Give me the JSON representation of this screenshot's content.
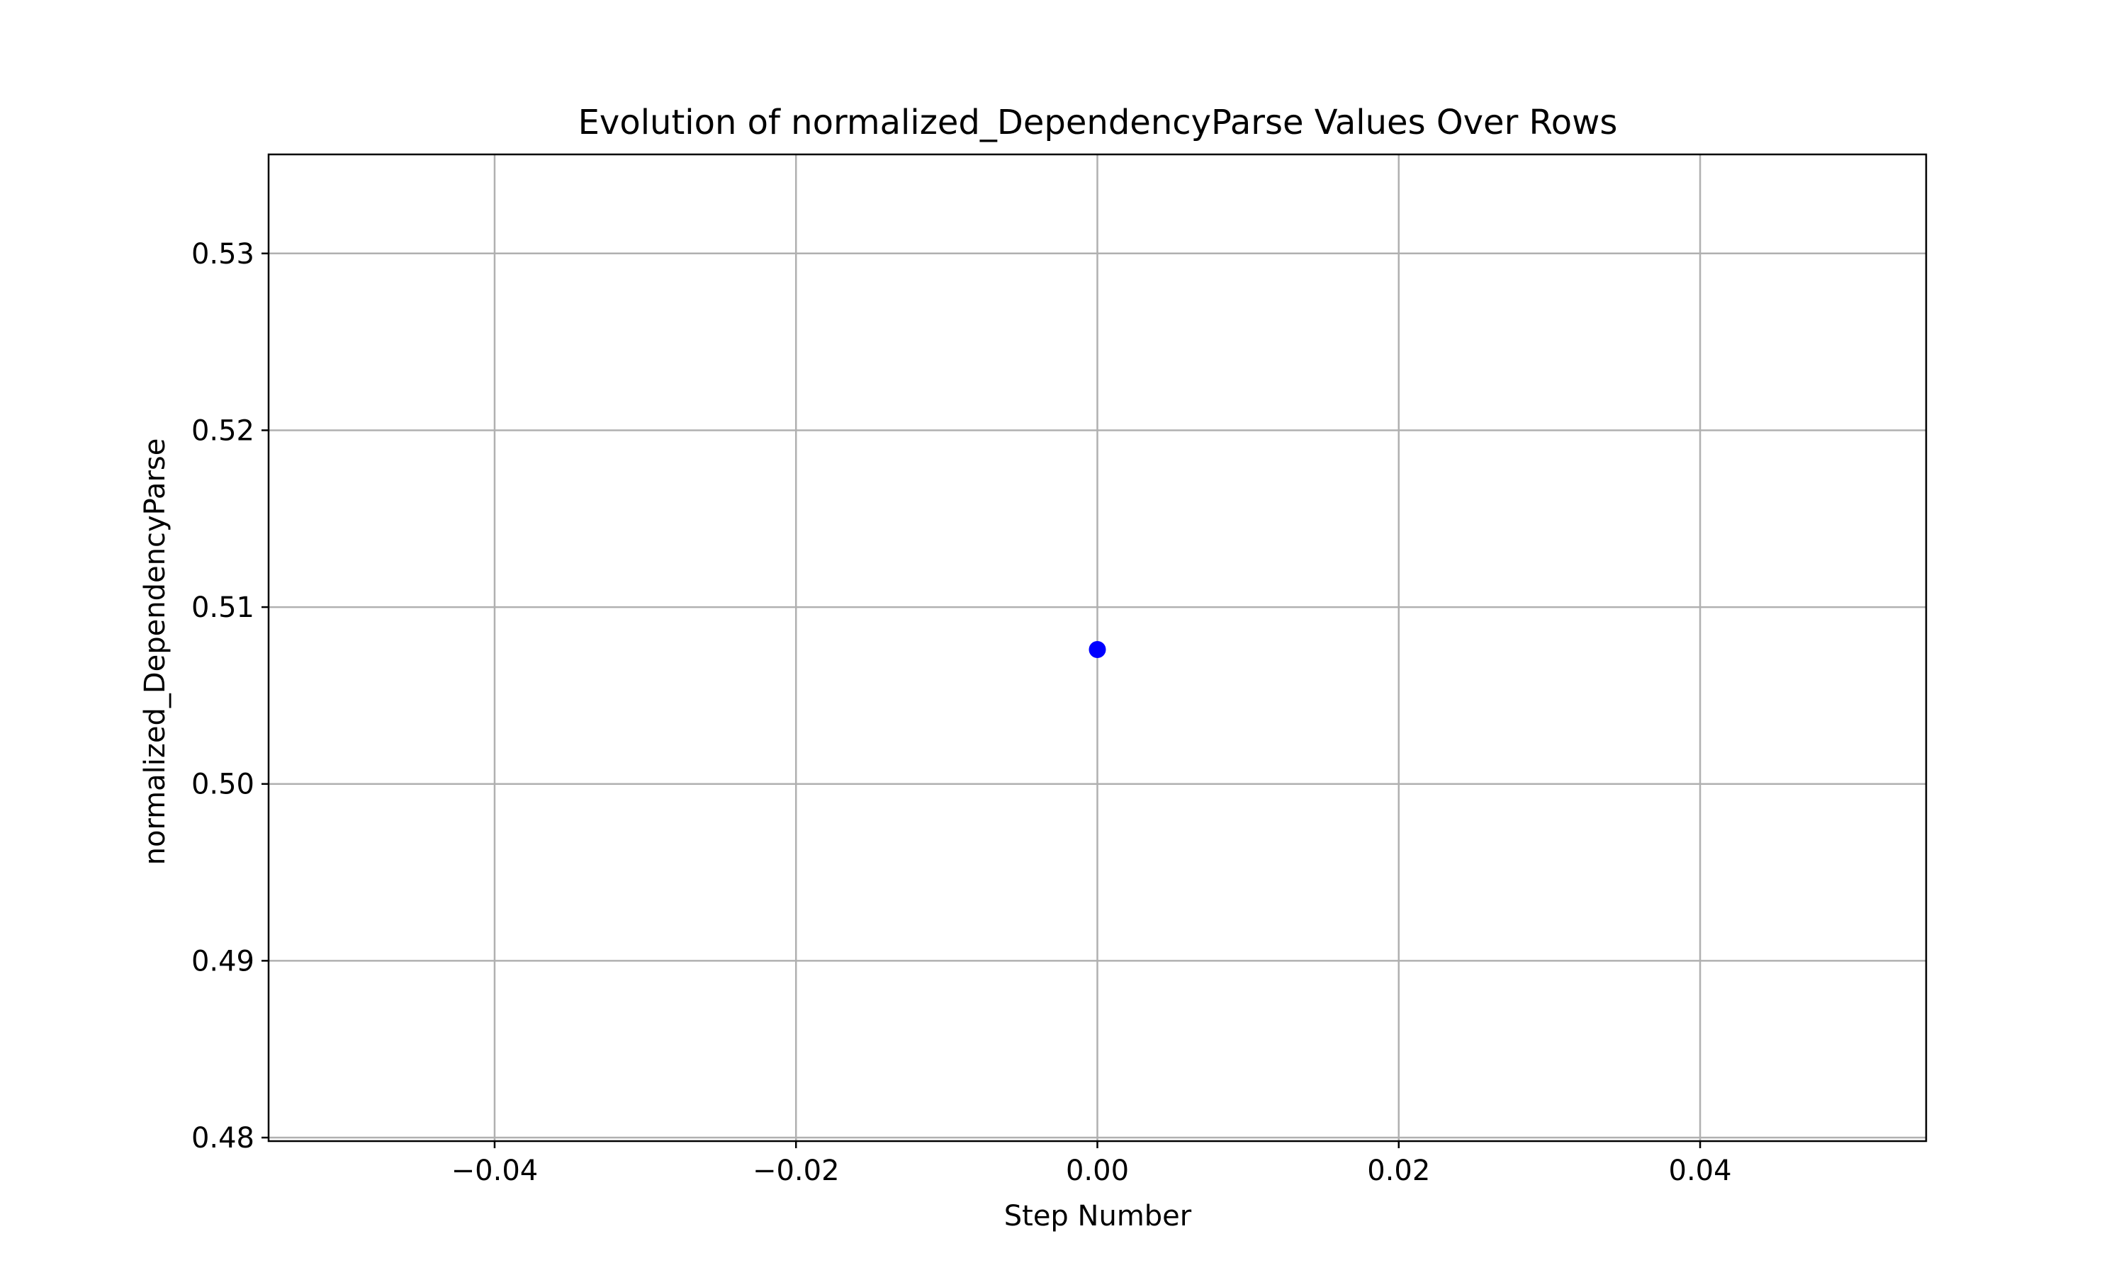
{
  "chart_data": {
    "type": "scatter",
    "title": "Evolution of normalized_DependencyParse Values Over Rows",
    "xlabel": "Step Number",
    "ylabel": "normalized_DependencyParse",
    "xlim": [
      -0.055,
      0.055
    ],
    "ylim": [
      0.4798,
      0.5356
    ],
    "xticks": [
      -0.04,
      -0.02,
      0.0,
      0.02,
      0.04
    ],
    "xtick_labels": [
      "−0.04",
      "−0.02",
      "0.00",
      "0.02",
      "0.04"
    ],
    "yticks": [
      0.48,
      0.49,
      0.5,
      0.51,
      0.52,
      0.53
    ],
    "ytick_labels": [
      "0.48",
      "0.49",
      "0.50",
      "0.51",
      "0.52",
      "0.53"
    ],
    "grid": true,
    "series": [
      {
        "color": "#0000ff",
        "points": [
          {
            "x": 0.0,
            "y": 0.5076
          }
        ]
      }
    ]
  }
}
